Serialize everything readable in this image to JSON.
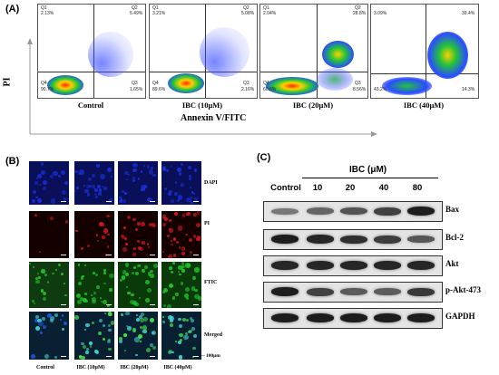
{
  "panels": {
    "A": {
      "label": "(A)",
      "y_axis_label": "PI",
      "x_axis_label": "Annexin V/FITC",
      "plots": [
        {
          "caption": "Control",
          "q1": "Q1",
          "q2": "Q2",
          "q3": "Q3",
          "q4": "Q4",
          "v1": "2.13%",
          "v2": "5.49%",
          "v3": "1.65%",
          "v4": "90.7%"
        },
        {
          "caption": "IBC (10μM)",
          "q1": "Q1",
          "q2": "Q2",
          "q3": "Q3",
          "q4": "Q4",
          "v1": "3.21%",
          "v2": "5.08%",
          "v3": "2.16%",
          "v4": "89.6%"
        },
        {
          "caption": "IBC (20μM)",
          "q1": "Q1",
          "q2": "Q2",
          "q3": "Q3",
          "q4": "Q4",
          "v1": "2.04%",
          "v2": "28.8%",
          "v3": "8.56%",
          "v4": "60.6%"
        },
        {
          "caption": "IBC (40μM)",
          "q1": "",
          "q2": "",
          "q3": "",
          "q4": "",
          "v1": "3.09%",
          "v2": "39.4%",
          "v3": "14.3%",
          "v4": "43.2%"
        }
      ]
    },
    "B": {
      "label": "(B)",
      "rows": [
        "DAPI",
        "PI",
        "FTIC",
        "Merged"
      ],
      "columns": [
        "Control",
        "IBC (10μM)",
        "IBC (20μM)",
        "IBC (40μM)"
      ],
      "scale": "100μm",
      "row_colors": {
        "DAPI": "#1a2fd6",
        "PI": "#d11919",
        "FTIC": "#22c12a",
        "Merged": "#2aa4b8"
      }
    },
    "C": {
      "label": "(C)",
      "treatment_header": "IBC (μM)",
      "columns": [
        "Control",
        "10",
        "20",
        "40",
        "80"
      ],
      "proteins": [
        {
          "name": "Bax",
          "intensity": [
            0.45,
            0.55,
            0.65,
            0.75,
            0.95
          ]
        },
        {
          "name": "Bcl-2",
          "intensity": [
            0.95,
            0.9,
            0.85,
            0.78,
            0.62
          ]
        },
        {
          "name": "Akt",
          "intensity": [
            0.9,
            0.9,
            0.9,
            0.9,
            0.9
          ]
        },
        {
          "name": "p-Akt-473",
          "intensity": [
            0.95,
            0.75,
            0.6,
            0.6,
            0.8
          ]
        },
        {
          "name": "GAPDH",
          "intensity": [
            0.95,
            0.95,
            0.95,
            0.95,
            0.95
          ]
        }
      ]
    }
  }
}
